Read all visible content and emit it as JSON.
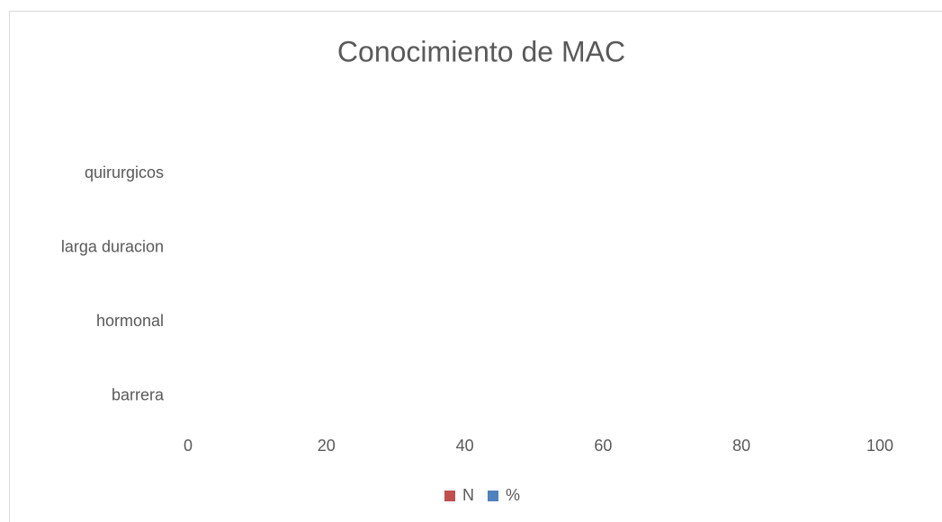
{
  "chart_data": {
    "type": "bar",
    "orientation": "horizontal",
    "title": "Conocimiento de MAC",
    "categories": [
      "barrera",
      "hormonal",
      "larga duracion",
      "quirurgicos"
    ],
    "series": [
      {
        "name": "N",
        "color": "#c0504d",
        "values": [
          null,
          null,
          null,
          null
        ]
      },
      {
        "name": "%",
        "color": "#4f81bd",
        "values": [
          null,
          null,
          null,
          null
        ]
      }
    ],
    "xlim": [
      0,
      100
    ],
    "xticks": [
      0,
      20,
      40,
      60,
      80,
      100
    ],
    "grid": false,
    "legend": "bottom"
  }
}
